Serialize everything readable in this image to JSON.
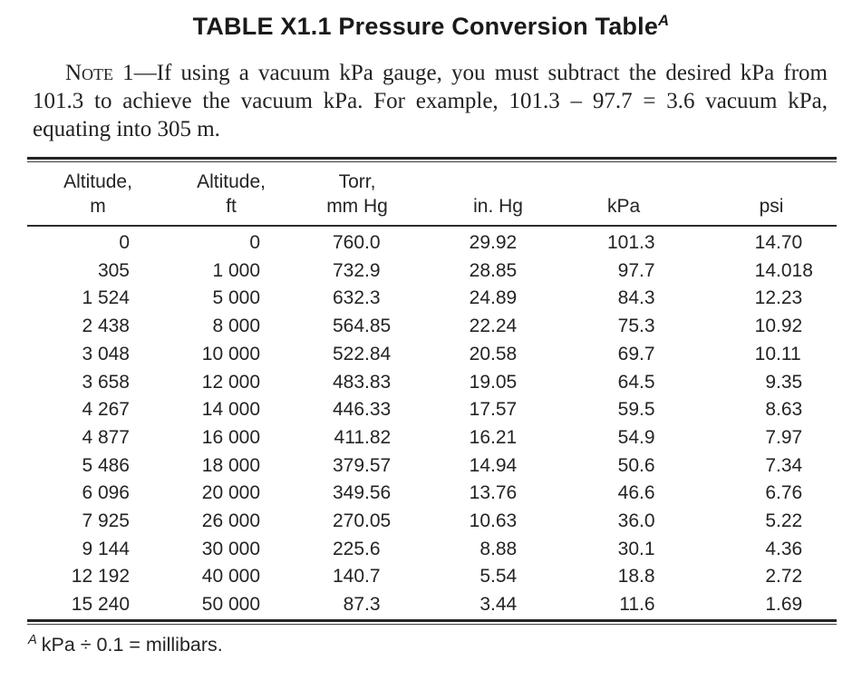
{
  "title": {
    "text": "TABLE X1.1 Pressure Conversion Table",
    "superscript": "A"
  },
  "note": {
    "label": "Note 1",
    "text": "—If using a vacuum kPa gauge, you must subtract the desired kPa from 101.3 to achieve the vacuum kPa. For example, 101.3 – 97.7 = 3.6 vacuum kPa, equating into 305 m."
  },
  "table": {
    "columns": [
      {
        "line1": "Altitude,",
        "line2": "m"
      },
      {
        "line1": "Altitude,",
        "line2": "ft"
      },
      {
        "line1": "Torr,",
        "line2": "mm Hg"
      },
      {
        "line1": "",
        "line2": "in. Hg"
      },
      {
        "line1": "",
        "line2": "kPa"
      },
      {
        "line1": "",
        "line2": "psi"
      }
    ],
    "rows": [
      [
        "0",
        "0",
        "760.0",
        "29.92",
        "101.3",
        "14.70"
      ],
      [
        "305",
        "1 000",
        "732.9",
        "28.85",
        "97.7",
        "14.018"
      ],
      [
        "1 524",
        "5 000",
        "632.3",
        "24.89",
        "84.3",
        "12.23"
      ],
      [
        "2 438",
        "8 000",
        "564.85",
        "22.24",
        "75.3",
        "10.92"
      ],
      [
        "3 048",
        "10 000",
        "522.84",
        "20.58",
        "69.7",
        "10.11"
      ],
      [
        "3 658",
        "12 000",
        "483.83",
        "19.05",
        "64.5",
        "9.35"
      ],
      [
        "4 267",
        "14 000",
        "446.33",
        "17.57",
        "59.5",
        "8.63"
      ],
      [
        "4 877",
        "16 000",
        "411.82",
        "16.21",
        "54.9",
        "7.97"
      ],
      [
        "5 486",
        "18 000",
        "379.57",
        "14.94",
        "50.6",
        "7.34"
      ],
      [
        "6 096",
        "20 000",
        "349.56",
        "13.76",
        "46.6",
        "6.76"
      ],
      [
        "7 925",
        "26 000",
        "270.05",
        "10.63",
        "36.0",
        "5.22"
      ],
      [
        "9 144",
        "30 000",
        "225.6",
        "8.88",
        "30.1",
        "4.36"
      ],
      [
        "12 192",
        "40 000",
        "140.7",
        "5.54",
        "18.8",
        "2.72"
      ],
      [
        "15 240",
        "50 000",
        "87.3",
        "3.44",
        "11.6",
        "1.69"
      ]
    ]
  },
  "footnote": {
    "superscript": "A",
    "text": "kPa ÷ 0.1 = millibars."
  },
  "colors": {
    "ink": "#1c1c1c",
    "background": "#ffffff"
  }
}
